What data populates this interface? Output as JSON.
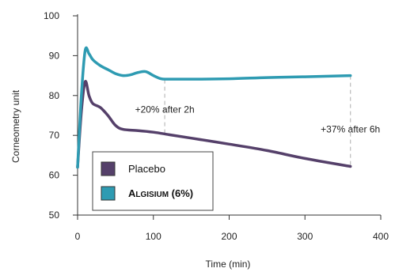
{
  "chart_data": {
    "type": "line",
    "title": "",
    "xlabel": "Time (min)",
    "ylabel": "Corneometry unit",
    "xlim": [
      0,
      400
    ],
    "ylim": [
      50,
      100
    ],
    "x_ticks": [
      0,
      100,
      200,
      300,
      400
    ],
    "y_ticks": [
      50,
      60,
      70,
      80,
      90,
      100
    ],
    "x_tick_labels": [
      "0",
      "100",
      "200",
      "300",
      "400"
    ],
    "y_tick_labels": [
      "50",
      "60",
      "70",
      "80",
      "90",
      "100"
    ],
    "grid": false,
    "legend_position": "bottom-left",
    "series": [
      {
        "name": "Placebo",
        "color": "#55406a",
        "points": [
          [
            0,
            62
          ],
          [
            5,
            76
          ],
          [
            10,
            83.5
          ],
          [
            15,
            80
          ],
          [
            20,
            78
          ],
          [
            30,
            77
          ],
          [
            40,
            75
          ],
          [
            50,
            72.5
          ],
          [
            60,
            71.5
          ],
          [
            80,
            71.2
          ],
          [
            100,
            70.8
          ],
          [
            120,
            70.2
          ],
          [
            150,
            69.3
          ],
          [
            200,
            67.8
          ],
          [
            250,
            66.2
          ],
          [
            300,
            64.2
          ],
          [
            360,
            62.2
          ]
        ]
      },
      {
        "name": "Algisium (6%)",
        "name_parts": [
          {
            "text": "A",
            "small": false
          },
          {
            "text": "LGISIUM",
            "small": true
          },
          {
            "text": " (6%)",
            "small": false
          }
        ],
        "color": "#2e9bb2",
        "points": [
          [
            0,
            62
          ],
          [
            5,
            80
          ],
          [
            10,
            91.3
          ],
          [
            15,
            90.5
          ],
          [
            20,
            89
          ],
          [
            30,
            87.5
          ],
          [
            40,
            86.5
          ],
          [
            50,
            85.5
          ],
          [
            60,
            85
          ],
          [
            70,
            85.2
          ],
          [
            80,
            85.8
          ],
          [
            90,
            86
          ],
          [
            100,
            85
          ],
          [
            110,
            84.2
          ],
          [
            120,
            84.1
          ],
          [
            150,
            84.1
          ],
          [
            200,
            84.2
          ],
          [
            250,
            84.5
          ],
          [
            300,
            84.7
          ],
          [
            360,
            85
          ]
        ]
      }
    ],
    "annotations": [
      {
        "text": "+20% after 2h",
        "x": 115,
        "y_from": 84,
        "y_to": 70.5,
        "text_y": 76.5
      },
      {
        "text": "+37% after 6h",
        "x": 360,
        "y_from": 85,
        "y_to": 62.2,
        "text_y": 71.5
      }
    ]
  }
}
